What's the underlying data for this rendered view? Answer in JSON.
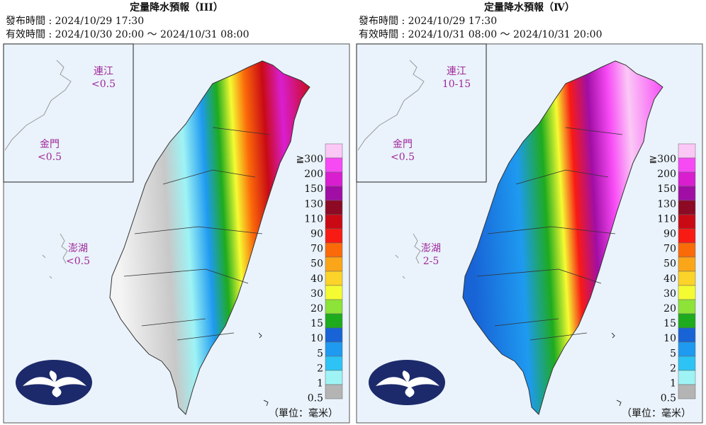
{
  "panels": [
    {
      "title": "定量降水預報（III）",
      "issued": "發布時間 : 2024/10/29 17:30",
      "valid": "有效時間 : 2024/10/30 20:00 ～ 2024/10/31 08:00",
      "regions": [
        {
          "name": "連江",
          "amount": "<0.5"
        },
        {
          "name": "金門",
          "amount": "<0.5"
        },
        {
          "name": "澎湖",
          "amount": "<0.5"
        }
      ]
    },
    {
      "title": "定量降水預報（Ⅳ）",
      "issued": "發布時間 : 2024/10/29 17:30",
      "valid": "有效時間 : 2024/10/31 08:00 ～ 2024/10/31 20:00",
      "regions": [
        {
          "name": "連江",
          "amount": "10-15"
        },
        {
          "name": "金門",
          "amount": "<0.5"
        },
        {
          "name": "澎湖",
          "amount": "2-5"
        }
      ]
    }
  ],
  "legend": {
    "labels": [
      "≧300",
      "200",
      "150",
      "130",
      "110",
      "90",
      "70",
      "50",
      "40",
      "30",
      "20",
      "15",
      "10",
      "5",
      "2",
      "1",
      "0.5"
    ],
    "colors": [
      "#fbc8f6",
      "#f74af5",
      "#d91ed0",
      "#a10ea5",
      "#8c0a24",
      "#c90a15",
      "#f81b14",
      "#fb6a09",
      "#fba618",
      "#fcd328",
      "#f5fb32",
      "#8de337",
      "#1eab1e",
      "#1863d6",
      "#1e9af0",
      "#2dc4f5",
      "#9ef3f5",
      "#b4b4b4"
    ]
  },
  "unit": "（單位：毫米）"
}
